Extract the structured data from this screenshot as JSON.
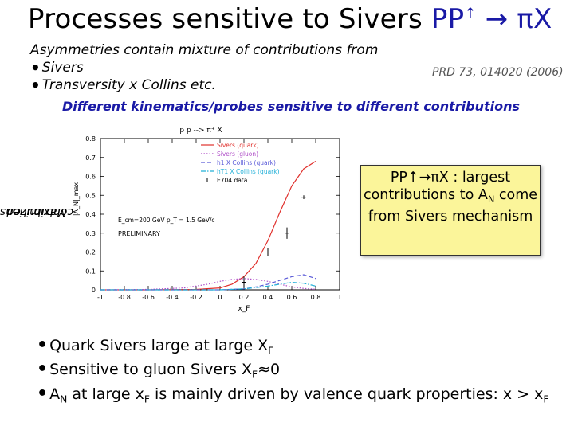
{
  "title": {
    "main": "Processes sensitive to Sivers ",
    "reaction_prefix": "PP",
    "arrow_up": "↑",
    "reaction_suffix": " → πX"
  },
  "intro": {
    "line1": "Asymmetries contain mixture of contributions from",
    "bullet1": "Sivers",
    "bullet2": "Transversity  x  Collins etc."
  },
  "reference": "PRD 73, 014020 (2006)",
  "kinematics_note": "Different kinematics/probes sensitive to different contributions",
  "y_side_label": {
    "line1": "Maximized",
    "line2": "contributions"
  },
  "callout": {
    "reaction": "PP↑→πX",
    "text_a": " : largest contributions to A",
    "sub_a": "N",
    "text_b": " come from Sivers mechanism"
  },
  "bullets": [
    {
      "text": "Quark Sivers large at large X",
      "sub": "F",
      "tail": ""
    },
    {
      "text": "Sensitive to gluon Sivers X",
      "sub": "F",
      "tail": "≈0"
    },
    {
      "text": "A",
      "sub": "N",
      "tail": " at large x",
      "sub2": "F",
      "tail2": " is mainly driven by valence quark properties: x > x",
      "sub3": "F"
    }
  ],
  "chart_data": {
    "type": "line",
    "title": "p p --> π⁺ X",
    "xlabel": "x_F",
    "ylabel": "|A_N|_max",
    "xlim": [
      -1,
      1
    ],
    "ylim": [
      0,
      0.8
    ],
    "x_ticks": [
      "-1",
      "-0.8",
      "-0.6",
      "-0.4",
      "-0.2",
      "0",
      "0.2",
      "0.4",
      "0.6",
      "0.8",
      "1"
    ],
    "y_ticks": [
      "0",
      "0.1",
      "0.2",
      "0.3",
      "0.4",
      "0.5",
      "0.6",
      "0.7",
      "0.8"
    ],
    "annotations": [
      "E_cm=200 GeV  p_T = 1.5 GeV/c",
      "PRELIMINARY"
    ],
    "series": [
      {
        "name": "Sivers (quark)",
        "style": "solid",
        "color": "#e0302c",
        "x": [
          -1,
          -0.6,
          -0.2,
          0,
          0.1,
          0.2,
          0.3,
          0.4,
          0.5,
          0.6,
          0.7,
          0.8
        ],
        "y": [
          0,
          0,
          0.002,
          0.01,
          0.03,
          0.07,
          0.14,
          0.26,
          0.41,
          0.55,
          0.64,
          0.68
        ]
      },
      {
        "name": "Sivers (gluon)",
        "style": "dotted",
        "color": "#b04fc8",
        "x": [
          -1,
          -0.6,
          -0.3,
          -0.1,
          0,
          0.1,
          0.2,
          0.3,
          0.4,
          0.5,
          0.6,
          0.7,
          0.8
        ],
        "y": [
          0,
          0.002,
          0.01,
          0.03,
          0.045,
          0.055,
          0.06,
          0.055,
          0.045,
          0.03,
          0.015,
          0.007,
          0.003
        ]
      },
      {
        "name": "h1 X Collins (quark)",
        "style": "dashed",
        "color": "#5a5ad8",
        "x": [
          -1,
          -0.4,
          0,
          0.2,
          0.3,
          0.4,
          0.5,
          0.6,
          0.7,
          0.8
        ],
        "y": [
          0,
          0,
          0,
          0.005,
          0.015,
          0.03,
          0.05,
          0.07,
          0.08,
          0.06
        ]
      },
      {
        "name": "hT1 X Collins (quark)",
        "style": "dashdot",
        "color": "#22b0d8",
        "x": [
          -1,
          -0.4,
          0,
          0.2,
          0.3,
          0.4,
          0.5,
          0.6,
          0.7,
          0.8
        ],
        "y": [
          0,
          0,
          0,
          0.005,
          0.012,
          0.02,
          0.03,
          0.04,
          0.035,
          0.02
        ]
      },
      {
        "name": "E704 data",
        "style": "points",
        "color": "#000000",
        "x": [
          0.2,
          0.4,
          0.56,
          0.7
        ],
        "y": [
          0.04,
          0.2,
          0.3,
          0.49
        ],
        "err": [
          0.03,
          0.02,
          0.03,
          0.01
        ]
      }
    ]
  },
  "colors": {
    "title_blue": "#1a1aa6",
    "callout_bg": "#fbf59a"
  }
}
